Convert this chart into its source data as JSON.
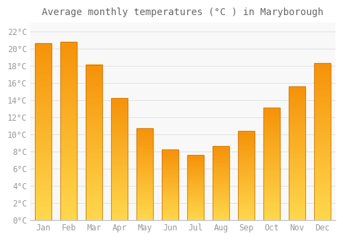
{
  "title": "Average monthly temperatures (°C ) in Maryborough",
  "months": [
    "Jan",
    "Feb",
    "Mar",
    "Apr",
    "May",
    "Jun",
    "Jul",
    "Aug",
    "Sep",
    "Oct",
    "Nov",
    "Dec"
  ],
  "values": [
    20.6,
    20.8,
    18.1,
    14.2,
    10.7,
    8.2,
    7.6,
    8.6,
    10.4,
    13.1,
    15.6,
    18.3
  ],
  "bar_color_bottom": "#FFD84D",
  "bar_color_top": "#F5930A",
  "bar_edge_color": "#C97A10",
  "background_color": "#FFFFFF",
  "plot_bg_color": "#F8F8F8",
  "grid_color": "#E0E0E0",
  "ylim": [
    0,
    23
  ],
  "yticks": [
    0,
    2,
    4,
    6,
    8,
    10,
    12,
    14,
    16,
    18,
    20,
    22
  ],
  "ytick_labels": [
    "0°C",
    "2°C",
    "4°C",
    "6°C",
    "8°C",
    "10°C",
    "12°C",
    "14°C",
    "16°C",
    "18°C",
    "20°C",
    "22°C"
  ],
  "title_fontsize": 10,
  "tick_fontsize": 8.5,
  "font_color": "#999999",
  "title_color": "#666666",
  "bar_width": 0.65
}
